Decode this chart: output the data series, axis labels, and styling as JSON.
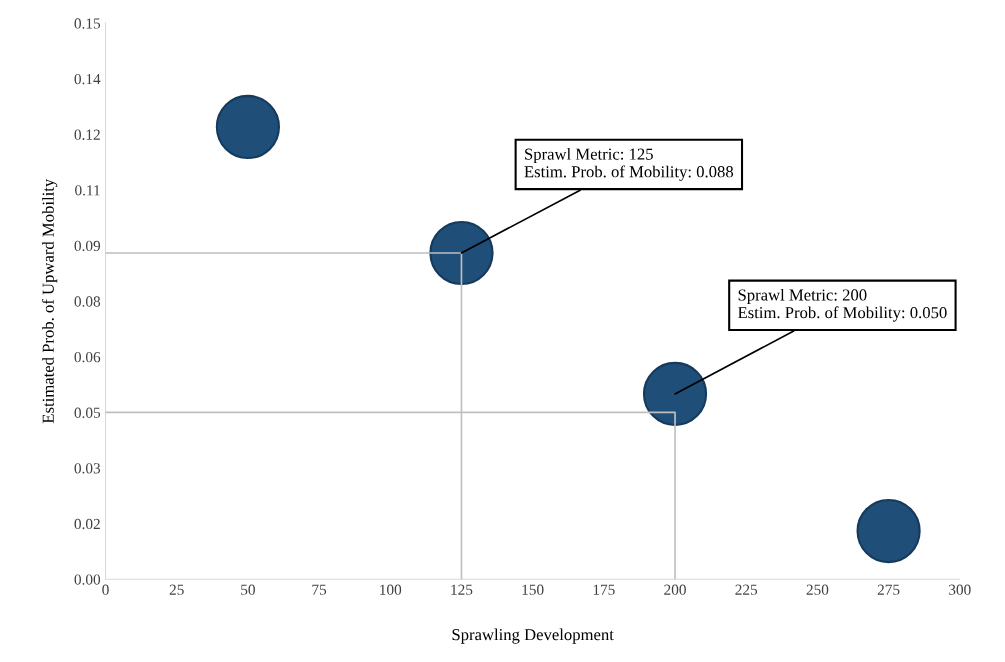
{
  "chart_data": {
    "type": "bubble",
    "xlabel": "Sprawling Development",
    "ylabel": "Estimated Prob. of Upward Mobility",
    "xlim": [
      0,
      300
    ],
    "xticks": [
      0,
      25,
      50,
      75,
      100,
      125,
      150,
      175,
      200,
      225,
      250,
      275,
      300
    ],
    "ylim": [
      0,
      0.15
    ],
    "yticks": [
      {
        "value": 0,
        "label": "0.00"
      },
      {
        "value": 0.015,
        "label": "0.02"
      },
      {
        "value": 0.03,
        "label": "0.03"
      },
      {
        "value": 0.045,
        "label": "0.05"
      },
      {
        "value": 0.06,
        "label": "0.06"
      },
      {
        "value": 0.075,
        "label": "0.08"
      },
      {
        "value": 0.09,
        "label": "0.09"
      },
      {
        "value": 0.105,
        "label": "0.11"
      },
      {
        "value": 0.12,
        "label": "0.12"
      },
      {
        "value": 0.135,
        "label": "0.14"
      },
      {
        "value": 0.15,
        "label": "0.15"
      }
    ],
    "grid": false,
    "series": [
      {
        "type": "line",
        "color": "#bfbfbf",
        "x": [
          0,
          125,
          125
        ],
        "values": [
          0.088,
          0.088,
          0
        ]
      },
      {
        "type": "line",
        "color": "#bfbfbf",
        "x": [
          0,
          200,
          200
        ],
        "values": [
          0.045,
          0.045,
          0
        ]
      },
      {
        "color": "#1f4e79",
        "x": [
          50,
          125,
          200,
          275
        ],
        "values": [
          0.122,
          0.088,
          0.05,
          0.013
        ],
        "sizes": [
          1,
          1,
          1,
          1
        ]
      }
    ],
    "annotations": [
      {
        "text": "Sprawl Metric: 125\nEstim. Prob. of Mobility: 0.088",
        "x": 125,
        "y": 0.088
      },
      {
        "text": "Sprawl Metric: 200\nEstim. Prob. of Mobility: 0.050",
        "x": 200,
        "y": 0.05
      }
    ]
  }
}
